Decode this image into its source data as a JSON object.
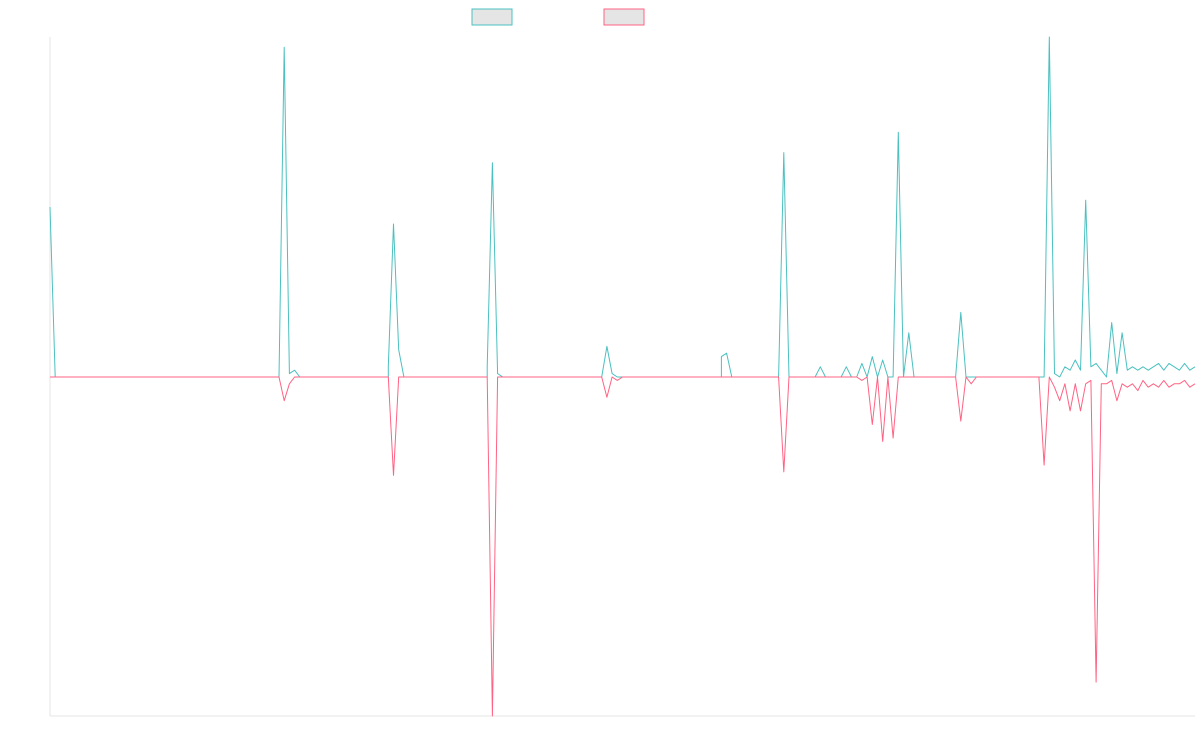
{
  "chart_data": {
    "type": "line",
    "title": "",
    "xlabel": "",
    "ylabel": "",
    "legend_position": "top-center",
    "grid": false,
    "x_count": 201,
    "ylim": [
      -1.0,
      1.0
    ],
    "series": [
      {
        "color": "#4bc0c0",
        "legend_fill": "#e5e5e5",
        "baseline": 0,
        "values_sparse": [
          [
            0,
            0.5
          ],
          [
            1,
            0.0
          ],
          [
            44,
            0.0
          ],
          [
            45,
            0.97
          ],
          [
            46,
            0.01
          ],
          [
            47,
            0.02
          ],
          [
            48,
            0.0
          ],
          [
            65,
            0.0
          ],
          [
            65,
            0.03
          ],
          [
            66,
            0.45
          ],
          [
            67,
            0.08
          ],
          [
            68,
            0.0
          ],
          [
            84,
            0.0
          ],
          [
            84,
            0.03
          ],
          [
            85,
            0.63
          ],
          [
            86,
            0.01
          ],
          [
            87,
            0.0
          ],
          [
            106,
            0.0
          ],
          [
            107,
            0.09
          ],
          [
            108,
            0.01
          ],
          [
            109,
            0.0
          ],
          [
            129,
            0.0
          ],
          [
            129,
            0.06
          ],
          [
            130,
            0.07
          ],
          [
            131,
            0.0
          ],
          [
            132,
            0.0
          ],
          [
            140,
            0.0
          ],
          [
            140,
            0.0
          ],
          [
            141,
            0.66
          ],
          [
            142,
            0.0
          ],
          [
            143,
            0.0
          ],
          [
            147,
            0.0
          ],
          [
            148,
            0.03
          ],
          [
            149,
            0.0
          ],
          [
            152,
            0.0
          ],
          [
            153,
            0.03
          ],
          [
            154,
            0.0
          ],
          [
            155,
            0.0
          ],
          [
            156,
            0.04
          ],
          [
            157,
            0.0
          ],
          [
            158,
            0.06
          ],
          [
            159,
            0.0
          ],
          [
            160,
            0.05
          ],
          [
            161,
            0.0
          ],
          [
            162,
            0.0
          ],
          [
            163,
            0.72
          ],
          [
            164,
            0.0
          ],
          [
            165,
            0.13
          ],
          [
            166,
            0.0
          ],
          [
            167,
            0.0
          ],
          [
            173,
            0.0
          ],
          [
            174,
            0.0
          ],
          [
            175,
            0.19
          ],
          [
            176,
            0.0
          ],
          [
            177,
            0.0
          ],
          [
            184,
            0.0
          ],
          [
            185,
            0.0
          ],
          [
            186,
            0.0
          ],
          [
            190,
            0.0
          ],
          [
            191,
            0.0
          ],
          [
            192,
            1.0
          ],
          [
            193,
            0.01
          ],
          [
            194,
            0.0
          ],
          [
            195,
            0.03
          ],
          [
            196,
            0.02
          ],
          [
            197,
            0.05
          ],
          [
            198,
            0.02
          ],
          [
            199,
            0.52
          ],
          [
            200,
            0.03
          ],
          [
            201,
            0.04
          ],
          [
            202,
            0.02
          ],
          [
            203,
            0.0
          ],
          [
            204,
            0.16
          ],
          [
            205,
            0.01
          ],
          [
            206,
            0.13
          ],
          [
            207,
            0.02
          ],
          [
            208,
            0.03
          ],
          [
            209,
            0.02
          ],
          [
            210,
            0.03
          ],
          [
            211,
            0.02
          ],
          [
            212,
            0.03
          ],
          [
            213,
            0.04
          ],
          [
            214,
            0.02
          ],
          [
            215,
            0.04
          ],
          [
            216,
            0.03
          ],
          [
            217,
            0.02
          ],
          [
            218,
            0.04
          ],
          [
            219,
            0.02
          ],
          [
            220,
            0.03
          ]
        ]
      },
      {
        "color": "#ff6384",
        "legend_fill": "#e5e5e5",
        "baseline": 0,
        "values_sparse": [
          [
            0,
            0.0
          ],
          [
            44,
            0.0
          ],
          [
            45,
            -0.07
          ],
          [
            46,
            -0.02
          ],
          [
            47,
            0.0
          ],
          [
            65,
            0.0
          ],
          [
            66,
            -0.29
          ],
          [
            67,
            0.0
          ],
          [
            84,
            0.0
          ],
          [
            85,
            -1.0
          ],
          [
            86,
            0.0
          ],
          [
            106,
            0.0
          ],
          [
            107,
            -0.06
          ],
          [
            108,
            0.0
          ],
          [
            109,
            -0.01
          ],
          [
            110,
            0.0
          ],
          [
            140,
            0.0
          ],
          [
            141,
            -0.28
          ],
          [
            142,
            0.0
          ],
          [
            155,
            0.0
          ],
          [
            156,
            -0.01
          ],
          [
            157,
            0.0
          ],
          [
            158,
            -0.14
          ],
          [
            159,
            0.0
          ],
          [
            160,
            -0.19
          ],
          [
            161,
            0.0
          ],
          [
            162,
            -0.18
          ],
          [
            163,
            0.0
          ],
          [
            164,
            0.0
          ],
          [
            174,
            0.0
          ],
          [
            175,
            -0.13
          ],
          [
            176,
            0.0
          ],
          [
            177,
            -0.02
          ],
          [
            178,
            0.0
          ],
          [
            190,
            0.0
          ],
          [
            191,
            -0.26
          ],
          [
            192,
            0.0
          ],
          [
            193,
            -0.03
          ],
          [
            194,
            -0.07
          ],
          [
            195,
            -0.02
          ],
          [
            196,
            -0.1
          ],
          [
            197,
            -0.02
          ],
          [
            198,
            -0.1
          ],
          [
            199,
            -0.02
          ],
          [
            200,
            -0.01
          ],
          [
            201,
            -0.9
          ],
          [
            202,
            -0.02
          ],
          [
            203,
            -0.02
          ],
          [
            204,
            -0.01
          ],
          [
            205,
            -0.07
          ],
          [
            206,
            -0.02
          ],
          [
            207,
            -0.03
          ],
          [
            208,
            -0.02
          ],
          [
            209,
            -0.04
          ],
          [
            210,
            -0.01
          ],
          [
            211,
            -0.03
          ],
          [
            212,
            -0.02
          ],
          [
            213,
            -0.03
          ],
          [
            214,
            -0.01
          ],
          [
            215,
            -0.03
          ],
          [
            216,
            -0.02
          ],
          [
            217,
            -0.02
          ],
          [
            218,
            -0.01
          ],
          [
            219,
            -0.03
          ],
          [
            220,
            -0.02
          ]
        ]
      }
    ]
  }
}
